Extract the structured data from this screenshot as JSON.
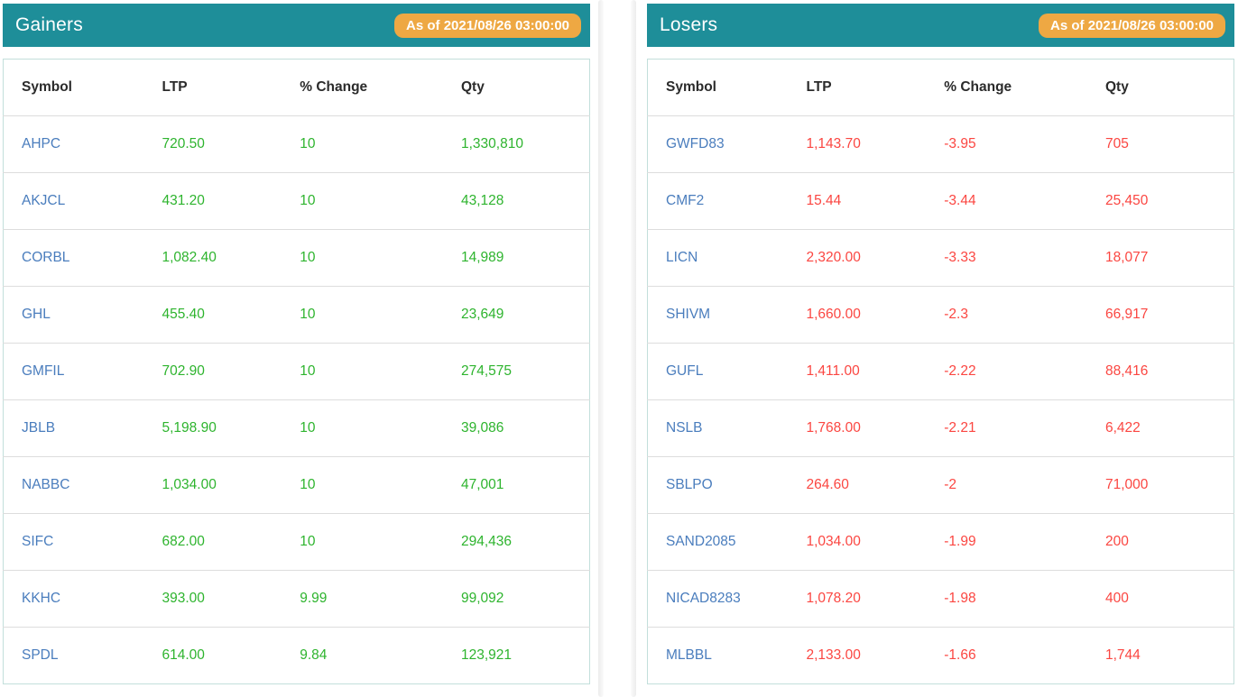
{
  "colors": {
    "header_bg": "#1e8e99",
    "header_text": "#ffffff",
    "badge_bg": "#eea843",
    "badge_text": "#ffffff",
    "symbol_link": "#4a7dbd",
    "column_header_text": "#2b2b2b",
    "table_border": "#c2dfdb",
    "row_divider": "#dddddd"
  },
  "panels": [
    {
      "title": "Gainers",
      "as_of": "As of 2021/08/26 03:00:00",
      "columns": [
        "Symbol",
        "LTP",
        "% Change",
        "Qty"
      ],
      "value_color": "#2eb42e",
      "rows": [
        {
          "symbol": "AHPC",
          "ltp": "720.50",
          "change": "10",
          "qty": "1,330,810"
        },
        {
          "symbol": "AKJCL",
          "ltp": "431.20",
          "change": "10",
          "qty": "43,128"
        },
        {
          "symbol": "CORBL",
          "ltp": "1,082.40",
          "change": "10",
          "qty": "14,989"
        },
        {
          "symbol": "GHL",
          "ltp": "455.40",
          "change": "10",
          "qty": "23,649"
        },
        {
          "symbol": "GMFIL",
          "ltp": "702.90",
          "change": "10",
          "qty": "274,575"
        },
        {
          "symbol": "JBLB",
          "ltp": "5,198.90",
          "change": "10",
          "qty": "39,086"
        },
        {
          "symbol": "NABBC",
          "ltp": "1,034.00",
          "change": "10",
          "qty": "47,001"
        },
        {
          "symbol": "SIFC",
          "ltp": "682.00",
          "change": "10",
          "qty": "294,436"
        },
        {
          "symbol": "KKHC",
          "ltp": "393.00",
          "change": "9.99",
          "qty": "99,092"
        },
        {
          "symbol": "SPDL",
          "ltp": "614.00",
          "change": "9.84",
          "qty": "123,921"
        }
      ]
    },
    {
      "title": "Losers",
      "as_of": "As of 2021/08/26 03:00:00",
      "columns": [
        "Symbol",
        "LTP",
        "% Change",
        "Qty"
      ],
      "value_color": "#fb4641",
      "rows": [
        {
          "symbol": "GWFD83",
          "ltp": "1,143.70",
          "change": "-3.95",
          "qty": "705"
        },
        {
          "symbol": "CMF2",
          "ltp": "15.44",
          "change": "-3.44",
          "qty": "25,450"
        },
        {
          "symbol": "LICN",
          "ltp": "2,320.00",
          "change": "-3.33",
          "qty": "18,077"
        },
        {
          "symbol": "SHIVM",
          "ltp": "1,660.00",
          "change": "-2.3",
          "qty": "66,917"
        },
        {
          "symbol": "GUFL",
          "ltp": "1,411.00",
          "change": "-2.22",
          "qty": "88,416"
        },
        {
          "symbol": "NSLB",
          "ltp": "1,768.00",
          "change": "-2.21",
          "qty": "6,422"
        },
        {
          "symbol": "SBLPO",
          "ltp": "264.60",
          "change": "-2",
          "qty": "71,000"
        },
        {
          "symbol": "SAND2085",
          "ltp": "1,034.00",
          "change": "-1.99",
          "qty": "200"
        },
        {
          "symbol": "NICAD8283",
          "ltp": "1,078.20",
          "change": "-1.98",
          "qty": "400"
        },
        {
          "symbol": "MLBBL",
          "ltp": "2,133.00",
          "change": "-1.66",
          "qty": "1,744"
        }
      ]
    }
  ]
}
